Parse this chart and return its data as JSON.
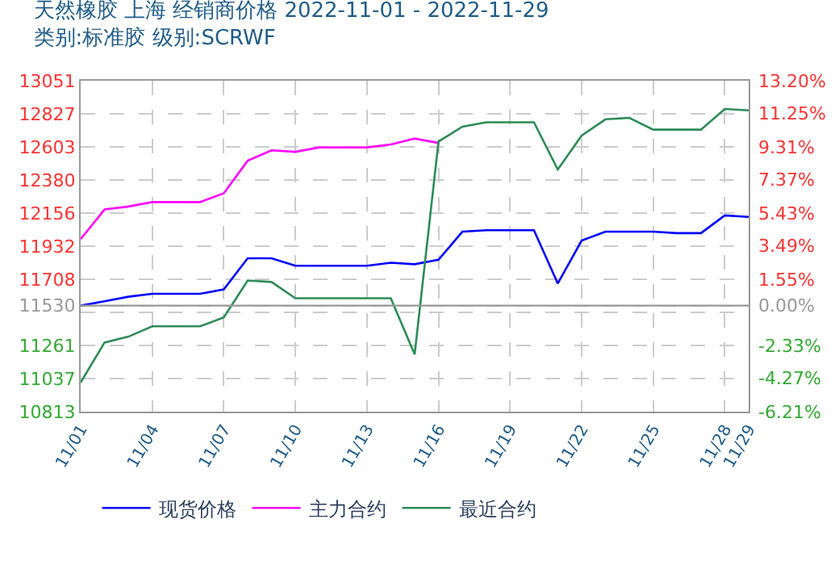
{
  "chart_data": {
    "type": "line",
    "title": "天然橡胶 上海 经销商价格 2022-11-01 - 2022-11-29",
    "subtitle": "类别:标准胶 级别:SCRWF",
    "x": [
      "2022-11-01",
      "2022-11-02",
      "2022-11-03",
      "2022-11-04",
      "2022-11-05",
      "2022-11-06",
      "2022-11-07",
      "2022-11-08",
      "2022-11-09",
      "2022-11-10",
      "2022-11-11",
      "2022-11-12",
      "2022-11-13",
      "2022-11-14",
      "2022-11-15",
      "2022-11-16",
      "2022-11-17",
      "2022-11-18",
      "2022-11-19",
      "2022-11-20",
      "2022-11-21",
      "2022-11-22",
      "2022-11-23",
      "2022-11-24",
      "2022-11-25",
      "2022-11-26",
      "2022-11-27",
      "2022-11-28",
      "2022-11-29"
    ],
    "series": [
      {
        "name": "现货价格",
        "color": "#0000ff",
        "values": [
          11530,
          11560,
          11590,
          11610,
          11610,
          11610,
          11640,
          11850,
          11850,
          11800,
          11800,
          11800,
          11800,
          11820,
          11810,
          11840,
          12030,
          12040,
          12040,
          12040,
          11680,
          11970,
          12030,
          12030,
          12030,
          12020,
          12020,
          12140,
          12130
        ]
      },
      {
        "name": "主力合约",
        "color": "#ff00ff",
        "values": [
          11980,
          12180,
          12200,
          12230,
          12230,
          12230,
          12290,
          12510,
          12580,
          12570,
          12600,
          12600,
          12600,
          12620,
          12660,
          12630,
          null,
          null,
          null,
          null,
          null,
          null,
          null,
          null,
          null,
          null,
          null,
          null,
          null
        ]
      },
      {
        "name": "最近合约",
        "color": "#2e8b57",
        "values": [
          11010,
          11280,
          11320,
          11390,
          11390,
          11390,
          11450,
          11700,
          11690,
          11580,
          11580,
          11580,
          11580,
          11580,
          11200,
          12640,
          12740,
          12770,
          12770,
          12770,
          12450,
          12680,
          12790,
          12800,
          12720,
          12720,
          12720,
          12860,
          12850
        ]
      }
    ],
    "xlim": [
      "2022-11-01",
      "2022-11-29"
    ],
    "xticks": [
      {
        "value": "2022-11-01",
        "label": "11/01"
      },
      {
        "value": "2022-11-04",
        "label": "11/04"
      },
      {
        "value": "2022-11-07",
        "label": "11/07"
      },
      {
        "value": "2022-11-10",
        "label": "11/10"
      },
      {
        "value": "2022-11-13",
        "label": "11/13"
      },
      {
        "value": "2022-11-16",
        "label": "11/16"
      },
      {
        "value": "2022-11-19",
        "label": "11/19"
      },
      {
        "value": "2022-11-22",
        "label": "11/22"
      },
      {
        "value": "2022-11-25",
        "label": "11/25"
      },
      {
        "value": "2022-11-28",
        "label": "11/28"
      },
      {
        "value": "2022-11-29",
        "label": "11/29"
      }
    ],
    "ylim": [
      10813,
      13051
    ],
    "yticks": [
      10813,
      11037,
      11261,
      {
        "value": 11484,
        "label": null
      },
      11530,
      11708,
      11932,
      12156,
      12380,
      12603,
      12827,
      13051
    ],
    "y2lim": [
      -6.21,
      13.2
    ],
    "y2ticks": [
      {
        "value": -6.21,
        "label": "-6.21%"
      },
      {
        "value": -4.27,
        "label": "-4.27%"
      },
      {
        "value": -2.33,
        "label": "-2.33%"
      },
      {
        "value": 0,
        "label": "0.00%"
      },
      {
        "value": 1.55,
        "label": "1.55%"
      },
      {
        "value": 3.49,
        "label": "3.49%"
      },
      {
        "value": 5.43,
        "label": "5.43%"
      },
      {
        "value": 7.37,
        "label": "7.37%"
      },
      {
        "value": 9.31,
        "label": "9.31%"
      },
      {
        "value": 11.25,
        "label": "11.25%"
      },
      {
        "value": 13.2,
        "label": "13.20%"
      }
    ],
    "ref_lines": [
      {
        "axis": "y",
        "value": 11530,
        "color": "#999999"
      }
    ],
    "grid": true,
    "legend": "bottom",
    "marker": "none",
    "line_style": "solid"
  }
}
